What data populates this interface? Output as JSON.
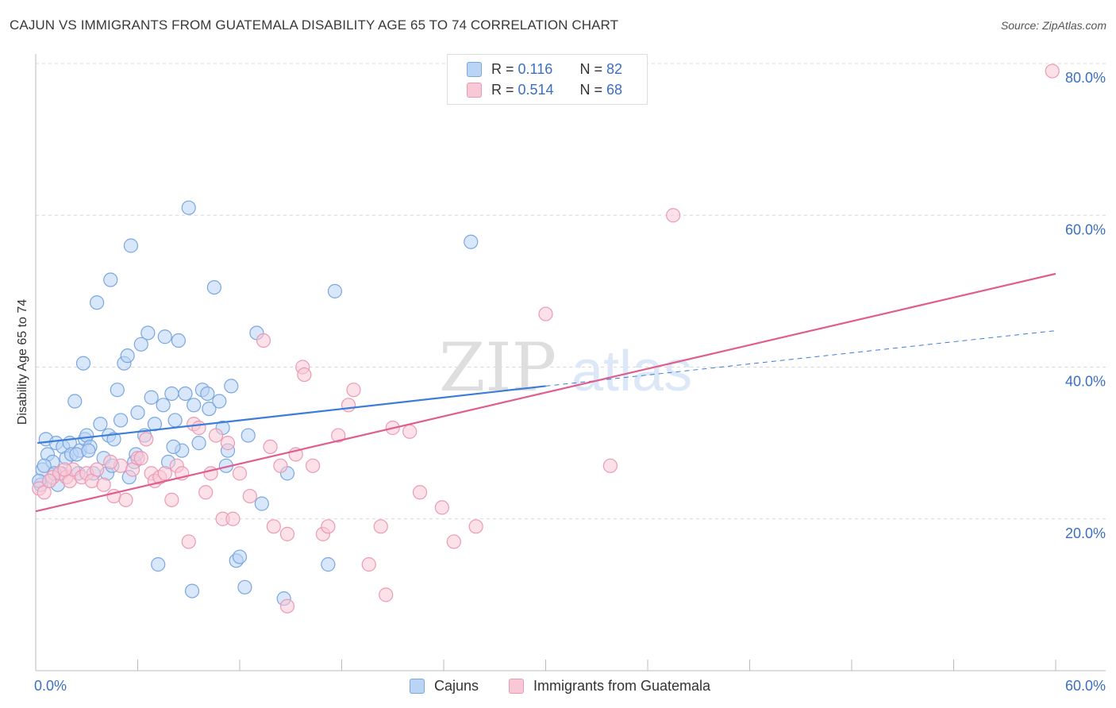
{
  "title": "CAJUN VS IMMIGRANTS FROM GUATEMALA DISABILITY AGE 65 TO 74 CORRELATION CHART",
  "source": "Source: ZipAtlas.com",
  "watermark": {
    "zip": "ZIP",
    "atlas": "atlas"
  },
  "legend": {
    "rows": [
      {
        "r_label": "R = ",
        "r_value": "0.116",
        "n_label": "N = ",
        "n_value": "82",
        "fill": "#b9d4f5",
        "stroke": "#7aa7e0"
      },
      {
        "r_label": "R = ",
        "r_value": "0.514",
        "n_label": "N = ",
        "n_value": "68",
        "fill": "#f9c8d6",
        "stroke": "#ec9ab4"
      }
    ]
  },
  "bottom_legend": [
    {
      "label": "Cajuns",
      "fill": "#b9d4f5",
      "stroke": "#7aa7e0"
    },
    {
      "label": "Immigrants from Guatemala",
      "fill": "#f9c8d6",
      "stroke": "#ec9ab4"
    }
  ],
  "chart_data": {
    "type": "scatter",
    "title": "CAJUN VS IMMIGRANTS FROM GUATEMALA DISABILITY AGE 65 TO 74 CORRELATION CHART",
    "xlabel": "",
    "ylabel": "Disability Age 65 to 74",
    "xlim": [
      0,
      60
    ],
    "ylim": [
      0,
      80
    ],
    "x_tick_labels": [
      "0.0%",
      "60.0%"
    ],
    "y_tick_labels": [
      "20.0%",
      "40.0%",
      "60.0%",
      "80.0%"
    ],
    "y_ticks": [
      20,
      40,
      60,
      80
    ],
    "grid": true,
    "legend_position": "top-center",
    "series": [
      {
        "name": "Cajuns",
        "color": "#3b7dd8",
        "fill": "#b9d4f5",
        "stroke": "#7aa7e0",
        "trend": {
          "x0": 0.1,
          "y0": 30.0,
          "x1": 30.0,
          "y1": 37.5,
          "dash_to_x": 60.0,
          "dash_to_y": 44.8
        },
        "points": [
          [
            0.3,
            24.5
          ],
          [
            0.4,
            26.5
          ],
          [
            0.6,
            30.5
          ],
          [
            0.7,
            28.5
          ],
          [
            0.8,
            25.0
          ],
          [
            1.0,
            27.5
          ],
          [
            1.2,
            30.0
          ],
          [
            1.3,
            24.5
          ],
          [
            1.5,
            26.0
          ],
          [
            1.6,
            29.5
          ],
          [
            1.8,
            28.0
          ],
          [
            2.0,
            30.0
          ],
          [
            2.1,
            28.5
          ],
          [
            2.3,
            35.5
          ],
          [
            2.5,
            26.0
          ],
          [
            2.6,
            29.0
          ],
          [
            2.8,
            40.5
          ],
          [
            2.9,
            30.5
          ],
          [
            3.0,
            31.0
          ],
          [
            3.2,
            29.5
          ],
          [
            3.4,
            26.0
          ],
          [
            3.6,
            48.5
          ],
          [
            3.8,
            32.5
          ],
          [
            4.0,
            28.0
          ],
          [
            4.2,
            26.0
          ],
          [
            4.3,
            31.0
          ],
          [
            4.4,
            51.5
          ],
          [
            4.6,
            30.5
          ],
          [
            4.8,
            37.0
          ],
          [
            5.0,
            33.0
          ],
          [
            5.2,
            40.5
          ],
          [
            5.4,
            41.5
          ],
          [
            5.5,
            25.5
          ],
          [
            5.6,
            56.0
          ],
          [
            5.8,
            27.5
          ],
          [
            6.0,
            34.0
          ],
          [
            6.2,
            43.0
          ],
          [
            6.4,
            31.0
          ],
          [
            6.6,
            44.5
          ],
          [
            6.8,
            36.0
          ],
          [
            7.0,
            32.5
          ],
          [
            7.2,
            14.0
          ],
          [
            7.5,
            35.0
          ],
          [
            7.6,
            44.0
          ],
          [
            7.8,
            27.5
          ],
          [
            8.0,
            36.5
          ],
          [
            8.2,
            33.0
          ],
          [
            8.4,
            43.5
          ],
          [
            8.6,
            29.0
          ],
          [
            8.8,
            36.5
          ],
          [
            9.0,
            61.0
          ],
          [
            9.2,
            10.5
          ],
          [
            9.3,
            35.0
          ],
          [
            9.6,
            30.0
          ],
          [
            9.8,
            37.0
          ],
          [
            10.1,
            36.5
          ],
          [
            10.2,
            34.5
          ],
          [
            10.5,
            50.5
          ],
          [
            10.8,
            35.5
          ],
          [
            11.0,
            32.0
          ],
          [
            11.2,
            27.0
          ],
          [
            11.3,
            29.0
          ],
          [
            11.5,
            37.5
          ],
          [
            11.8,
            14.5
          ],
          [
            12.0,
            15.0
          ],
          [
            12.3,
            11.0
          ],
          [
            12.5,
            31.0
          ],
          [
            13.0,
            44.5
          ],
          [
            13.3,
            22.0
          ],
          [
            14.6,
            9.5
          ],
          [
            14.8,
            26.0
          ],
          [
            17.2,
            14.0
          ],
          [
            17.6,
            50.0
          ],
          [
            25.6,
            56.5
          ],
          [
            0.2,
            25.0
          ],
          [
            0.5,
            27.0
          ],
          [
            1.1,
            26.0
          ],
          [
            2.4,
            28.5
          ],
          [
            3.1,
            29.0
          ],
          [
            4.5,
            27.0
          ],
          [
            5.9,
            28.5
          ],
          [
            8.1,
            29.5
          ]
        ]
      },
      {
        "name": "Immigrants from Guatemala",
        "color": "#e05d8e",
        "fill": "#f9c8d6",
        "stroke": "#ec9ab4",
        "trend": {
          "x0": 0.0,
          "y0": 21.0,
          "x1": 60.0,
          "y1": 52.3
        },
        "points": [
          [
            0.2,
            24.0
          ],
          [
            0.5,
            23.5
          ],
          [
            1.0,
            25.5
          ],
          [
            1.4,
            26.0
          ],
          [
            1.8,
            25.5
          ],
          [
            2.0,
            25.0
          ],
          [
            2.2,
            26.5
          ],
          [
            2.7,
            25.5
          ],
          [
            3.0,
            26.0
          ],
          [
            3.3,
            25.0
          ],
          [
            3.6,
            26.5
          ],
          [
            4.0,
            24.5
          ],
          [
            4.6,
            23.0
          ],
          [
            5.0,
            27.0
          ],
          [
            5.3,
            22.5
          ],
          [
            5.7,
            26.5
          ],
          [
            6.0,
            28.0
          ],
          [
            6.5,
            30.5
          ],
          [
            6.8,
            26.0
          ],
          [
            7.0,
            25.0
          ],
          [
            7.3,
            25.5
          ],
          [
            7.6,
            26.0
          ],
          [
            8.0,
            22.5
          ],
          [
            8.3,
            27.0
          ],
          [
            8.6,
            26.0
          ],
          [
            9.0,
            17.0
          ],
          [
            9.3,
            32.5
          ],
          [
            9.6,
            32.0
          ],
          [
            10.0,
            23.5
          ],
          [
            10.3,
            26.0
          ],
          [
            10.6,
            31.0
          ],
          [
            11.0,
            20.0
          ],
          [
            11.3,
            30.0
          ],
          [
            11.6,
            20.0
          ],
          [
            12.0,
            26.0
          ],
          [
            12.6,
            23.0
          ],
          [
            13.4,
            43.5
          ],
          [
            13.8,
            29.5
          ],
          [
            14.0,
            19.0
          ],
          [
            14.4,
            27.0
          ],
          [
            14.8,
            18.0
          ],
          [
            15.3,
            28.5
          ],
          [
            15.7,
            40.0
          ],
          [
            15.8,
            39.0
          ],
          [
            16.3,
            27.0
          ],
          [
            16.9,
            18.0
          ],
          [
            17.2,
            19.0
          ],
          [
            17.8,
            31.0
          ],
          [
            18.4,
            35.0
          ],
          [
            18.7,
            37.0
          ],
          [
            19.6,
            14.0
          ],
          [
            20.3,
            19.0
          ],
          [
            20.6,
            10.0
          ],
          [
            21.0,
            32.0
          ],
          [
            22.0,
            31.5
          ],
          [
            22.6,
            23.5
          ],
          [
            23.9,
            21.5
          ],
          [
            24.6,
            17.0
          ],
          [
            25.9,
            19.0
          ],
          [
            30.0,
            47.0
          ],
          [
            33.8,
            27.0
          ],
          [
            37.5,
            60.0
          ],
          [
            59.8,
            79.0
          ],
          [
            14.8,
            8.5
          ],
          [
            6.2,
            28.0
          ],
          [
            4.4,
            27.5
          ],
          [
            1.7,
            26.5
          ],
          [
            0.8,
            25.0
          ]
        ]
      }
    ]
  }
}
